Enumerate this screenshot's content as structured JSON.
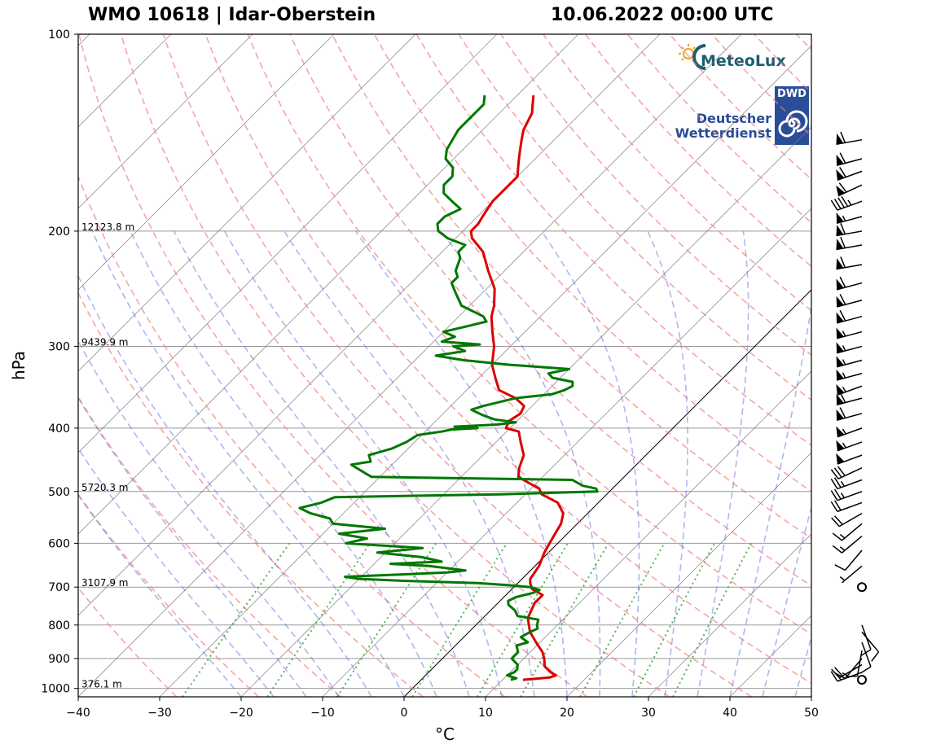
{
  "header": {
    "station": "WMO 10618 | Idar-Oberstein",
    "datetime": "10.06.2022 00:00 UTC"
  },
  "logos": {
    "meteolux": "MeteoLux",
    "dwd_abbr": "DWD",
    "dwd_line1": "Deutscher",
    "dwd_line2": "Wetterdienst"
  },
  "colors": {
    "temperature": "#dd0000",
    "dewpoint": "#007700",
    "isotherm": "#777777",
    "dry_adiabat": "#f08080",
    "moist_adiabat": "#6a6ae0",
    "mixing_ratio": "#2ca02c",
    "zero_isotherm": "#000000"
  },
  "chart_data": {
    "type": "skew-t log-p",
    "title": "WMO 10618 | Idar-Oberstein",
    "xlabel": "°C",
    "ylabel": "hPa",
    "xlim": [
      -40,
      50
    ],
    "ylim": [
      1030,
      100
    ],
    "xticks": [
      -40,
      -30,
      -20,
      -10,
      0,
      10,
      20,
      30,
      40,
      50
    ],
    "yticks": [
      100,
      200,
      300,
      400,
      500,
      600,
      700,
      800,
      900,
      1000
    ],
    "height_labels": [
      {
        "pressure": 200,
        "label": "12123.8 m"
      },
      {
        "pressure": 300,
        "label": "9439.9 m"
      },
      {
        "pressure": 500,
        "label": "5720.3 m"
      },
      {
        "pressure": 700,
        "label": "3107.9 m"
      },
      {
        "pressure": 1000,
        "label": "376.1 m"
      }
    ],
    "temperature": [
      [
        970,
        12.5
      ],
      [
        962,
        15.5
      ],
      [
        955,
        16
      ],
      [
        945,
        15
      ],
      [
        925,
        13.5
      ],
      [
        900,
        12.5
      ],
      [
        880,
        11.5
      ],
      [
        850,
        9.5
      ],
      [
        820,
        7.5
      ],
      [
        800,
        6.5
      ],
      [
        780,
        5.5
      ],
      [
        760,
        5
      ],
      [
        740,
        4.5
      ],
      [
        720,
        4.5
      ],
      [
        705,
        2.5
      ],
      [
        690,
        1.5
      ],
      [
        680,
        1
      ],
      [
        650,
        0.5
      ],
      [
        620,
        -0.5
      ],
      [
        600,
        -1
      ],
      [
        580,
        -1.5
      ],
      [
        560,
        -2
      ],
      [
        540,
        -3
      ],
      [
        520,
        -5
      ],
      [
        505,
        -8
      ],
      [
        495,
        -9
      ],
      [
        485,
        -11
      ],
      [
        475,
        -13
      ],
      [
        460,
        -14
      ],
      [
        440,
        -15
      ],
      [
        420,
        -17
      ],
      [
        405,
        -18.5
      ],
      [
        400,
        -20.5
      ],
      [
        390,
        -21
      ],
      [
        380,
        -20.5
      ],
      [
        370,
        -21
      ],
      [
        360,
        -23
      ],
      [
        350,
        -26
      ],
      [
        335,
        -28
      ],
      [
        320,
        -30
      ],
      [
        300,
        -32
      ],
      [
        285,
        -34
      ],
      [
        270,
        -36
      ],
      [
        260,
        -37
      ],
      [
        245,
        -39
      ],
      [
        230,
        -42
      ],
      [
        215,
        -45
      ],
      [
        205,
        -48
      ],
      [
        200,
        -49
      ],
      [
        195,
        -49
      ],
      [
        188,
        -49.5
      ],
      [
        180,
        -50
      ],
      [
        172,
        -50
      ],
      [
        165,
        -50
      ],
      [
        160,
        -51
      ],
      [
        155,
        -52
      ],
      [
        150,
        -53
      ],
      [
        145,
        -54
      ],
      [
        140,
        -55
      ],
      [
        132,
        -56
      ],
      [
        128,
        -57
      ],
      [
        124,
        -58
      ]
    ],
    "dewpoint": [
      [
        970,
        11
      ],
      [
        965,
        11.5
      ],
      [
        955,
        10
      ],
      [
        945,
        10.5
      ],
      [
        935,
        10.5
      ],
      [
        920,
        10
      ],
      [
        900,
        8.5
      ],
      [
        880,
        8.5
      ],
      [
        860,
        7.5
      ],
      [
        850,
        8.5
      ],
      [
        835,
        7
      ],
      [
        820,
        7.5
      ],
      [
        810,
        8
      ],
      [
        800,
        7.5
      ],
      [
        785,
        7
      ],
      [
        775,
        4
      ],
      [
        760,
        3
      ],
      [
        745,
        1.5
      ],
      [
        735,
        1
      ],
      [
        725,
        1.5
      ],
      [
        715,
        3
      ],
      [
        707,
        3.5
      ],
      [
        700,
        2
      ],
      [
        695,
        -1
      ],
      [
        690,
        -5
      ],
      [
        685,
        -14
      ],
      [
        680,
        -20
      ],
      [
        675,
        -22
      ],
      [
        665,
        -10
      ],
      [
        660,
        -8
      ],
      [
        650,
        -13
      ],
      [
        645,
        -18
      ],
      [
        640,
        -12
      ],
      [
        630,
        -15
      ],
      [
        620,
        -21
      ],
      [
        610,
        -16
      ],
      [
        600,
        -26
      ],
      [
        590,
        -24
      ],
      [
        580,
        -28
      ],
      [
        570,
        -23
      ],
      [
        560,
        -30
      ],
      [
        550,
        -31
      ],
      [
        540,
        -34
      ],
      [
        530,
        -36
      ],
      [
        520,
        -34
      ],
      [
        510,
        -33
      ],
      [
        505,
        -13
      ],
      [
        500,
        -1.5
      ],
      [
        495,
        -2
      ],
      [
        490,
        -4
      ],
      [
        480,
        -6
      ],
      [
        475,
        -31
      ],
      [
        470,
        -32
      ],
      [
        460,
        -34
      ],
      [
        455,
        -35
      ],
      [
        450,
        -33
      ],
      [
        440,
        -34
      ],
      [
        430,
        -32
      ],
      [
        420,
        -31
      ],
      [
        410,
        -30.5
      ],
      [
        405,
        -28
      ],
      [
        402,
        -27
      ],
      [
        400,
        -24
      ],
      [
        398,
        -27
      ],
      [
        395,
        -22
      ],
      [
        392,
        -20
      ],
      [
        388,
        -23
      ],
      [
        382,
        -25
      ],
      [
        375,
        -27
      ],
      [
        370,
        -26
      ],
      [
        360,
        -23
      ],
      [
        355,
        -19
      ],
      [
        350,
        -18
      ],
      [
        345,
        -17.5
      ],
      [
        340,
        -18
      ],
      [
        335,
        -21
      ],
      [
        330,
        -22
      ],
      [
        325,
        -20
      ],
      [
        320,
        -28
      ],
      [
        315,
        -34
      ],
      [
        310,
        -38
      ],
      [
        305,
        -35
      ],
      [
        300,
        -37
      ],
      [
        298,
        -34
      ],
      [
        295,
        -39
      ],
      [
        290,
        -38
      ],
      [
        285,
        -40
      ],
      [
        280,
        -38
      ],
      [
        275,
        -36
      ],
      [
        270,
        -37
      ],
      [
        260,
        -41
      ],
      [
        250,
        -43
      ],
      [
        245,
        -44
      ],
      [
        240,
        -45
      ],
      [
        235,
        -45
      ],
      [
        230,
        -46
      ],
      [
        220,
        -47
      ],
      [
        215,
        -48
      ],
      [
        210,
        -48
      ],
      [
        205,
        -51
      ],
      [
        200,
        -53
      ],
      [
        195,
        -54
      ],
      [
        190,
        -54
      ],
      [
        185,
        -53
      ],
      [
        180,
        -55
      ],
      [
        175,
        -57
      ],
      [
        170,
        -58
      ],
      [
        165,
        -58
      ],
      [
        160,
        -59
      ],
      [
        155,
        -61
      ],
      [
        150,
        -62
      ],
      [
        140,
        -63
      ],
      [
        135,
        -63
      ],
      [
        128,
        -63
      ],
      [
        124,
        -64
      ]
    ],
    "wind_barbs": [
      {
        "pressure": 970,
        "dir": 0,
        "speed": 0
      },
      {
        "pressure": 945,
        "dir": 250,
        "speed": 15
      },
      {
        "pressure": 920,
        "dir": 240,
        "speed": 20
      },
      {
        "pressure": 900,
        "dir": 220,
        "speed": 15
      },
      {
        "pressure": 875,
        "dir": 190,
        "speed": 10
      },
      {
        "pressure": 850,
        "dir": 160,
        "speed": 10
      },
      {
        "pressure": 820,
        "dir": 140,
        "speed": 10
      },
      {
        "pressure": 800,
        "dir": 160,
        "speed": 10
      },
      {
        "pressure": 700,
        "dir": 0,
        "speed": 0
      },
      {
        "pressure": 650,
        "dir": 230,
        "speed": 5
      },
      {
        "pressure": 615,
        "dir": 220,
        "speed": 10
      },
      {
        "pressure": 585,
        "dir": 230,
        "speed": 15
      },
      {
        "pressure": 560,
        "dir": 230,
        "speed": 15
      },
      {
        "pressure": 540,
        "dir": 240,
        "speed": 20
      },
      {
        "pressure": 520,
        "dir": 250,
        "speed": 20
      },
      {
        "pressure": 500,
        "dir": 250,
        "speed": 25
      },
      {
        "pressure": 480,
        "dir": 250,
        "speed": 25
      },
      {
        "pressure": 460,
        "dir": 245,
        "speed": 30
      },
      {
        "pressure": 440,
        "dir": 250,
        "speed": 50
      },
      {
        "pressure": 420,
        "dir": 250,
        "speed": 55
      },
      {
        "pressure": 400,
        "dir": 250,
        "speed": 55
      },
      {
        "pressure": 380,
        "dir": 255,
        "speed": 60
      },
      {
        "pressure": 360,
        "dir": 255,
        "speed": 60
      },
      {
        "pressure": 345,
        "dir": 250,
        "speed": 55
      },
      {
        "pressure": 330,
        "dir": 255,
        "speed": 55
      },
      {
        "pressure": 315,
        "dir": 255,
        "speed": 55
      },
      {
        "pressure": 300,
        "dir": 255,
        "speed": 55
      },
      {
        "pressure": 285,
        "dir": 255,
        "speed": 55
      },
      {
        "pressure": 270,
        "dir": 255,
        "speed": 60
      },
      {
        "pressure": 255,
        "dir": 255,
        "speed": 60
      },
      {
        "pressure": 240,
        "dir": 255,
        "speed": 60
      },
      {
        "pressure": 225,
        "dir": 260,
        "speed": 60
      },
      {
        "pressure": 210,
        "dir": 260,
        "speed": 60
      },
      {
        "pressure": 200,
        "dir": 260,
        "speed": 60
      },
      {
        "pressure": 190,
        "dir": 255,
        "speed": 55
      },
      {
        "pressure": 180,
        "dir": 250,
        "speed": 45
      },
      {
        "pressure": 170,
        "dir": 245,
        "speed": 60
      },
      {
        "pressure": 162,
        "dir": 250,
        "speed": 60
      },
      {
        "pressure": 155,
        "dir": 255,
        "speed": 60
      },
      {
        "pressure": 145,
        "dir": 260,
        "speed": 60
      }
    ]
  }
}
